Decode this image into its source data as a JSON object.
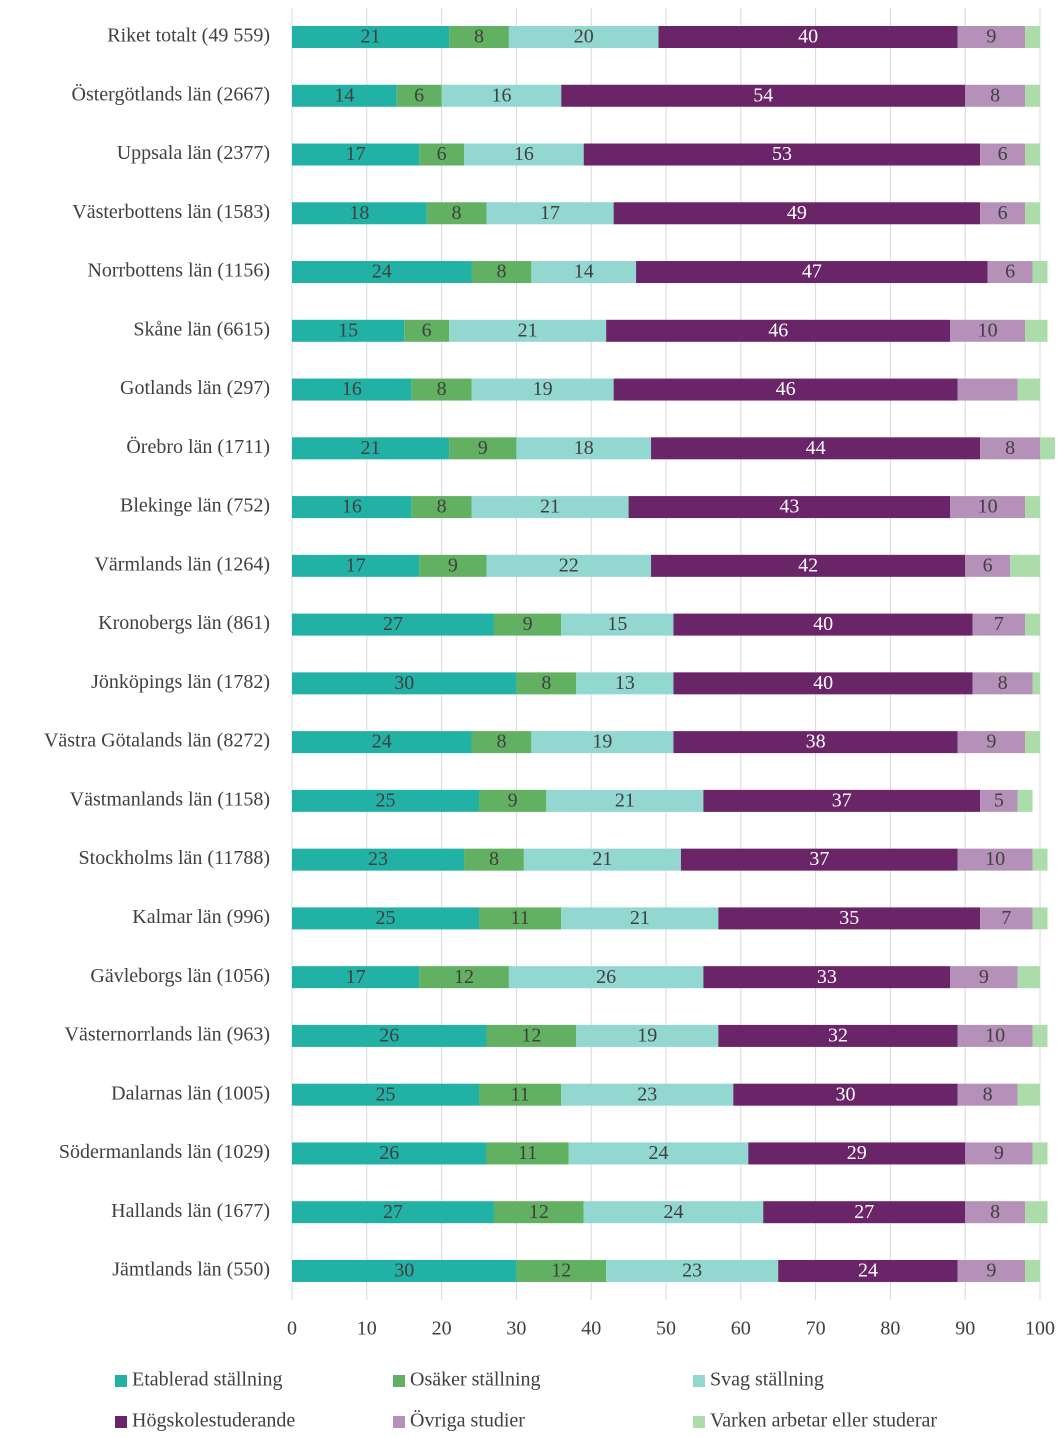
{
  "chart_data": {
    "type": "stacked_bar_horizontal",
    "categories": [
      "Riket totalt (49 559)",
      "Östergötlands län (2667)",
      "Uppsala län (2377)",
      "Västerbottens län (1583)",
      "Norrbottens län (1156)",
      "Skåne län (6615)",
      "Gotlands län (297)",
      "Örebro län (1711)",
      "Blekinge län (752)",
      "Värmlands län (1264)",
      "Kronobergs län (861)",
      "Jönköpings län (1782)",
      "Västra Götalands län (8272)",
      "Västmanlands län (1158)",
      "Stockholms län (11788)",
      "Kalmar län (996)",
      "Gävleborgs län (1056)",
      "Västernorrlands län (963)",
      "Dalarnas län (1005)",
      "Södermanlands län (1029)",
      "Hallands län (1677)",
      "Jämtlands län (550)"
    ],
    "series": [
      {
        "name": "Etablerad ställning",
        "color": "#22b1a5",
        "label_color": "#404040",
        "values": [
          21,
          14,
          17,
          18,
          24,
          15,
          16,
          21,
          16,
          17,
          27,
          30,
          24,
          25,
          23,
          25,
          17,
          26,
          25,
          26,
          27,
          30
        ]
      },
      {
        "name": "Osäker ställning",
        "color": "#62b162",
        "label_color": "#404040",
        "values": [
          8,
          6,
          6,
          8,
          8,
          6,
          8,
          9,
          8,
          9,
          9,
          8,
          8,
          9,
          8,
          11,
          12,
          12,
          11,
          11,
          12,
          12
        ]
      },
      {
        "name": "Svag ställning",
        "color": "#93d7d1",
        "label_color": "#404040",
        "values": [
          20,
          16,
          16,
          17,
          14,
          21,
          19,
          18,
          21,
          22,
          15,
          13,
          19,
          21,
          21,
          21,
          26,
          19,
          23,
          24,
          24,
          23
        ]
      },
      {
        "name": "Högskolestuderande",
        "color": "#6a2468",
        "label_color": "#ffffff",
        "values": [
          40,
          54,
          53,
          49,
          47,
          46,
          46,
          44,
          43,
          42,
          40,
          40,
          38,
          37,
          37,
          35,
          33,
          32,
          30,
          29,
          27,
          24
        ]
      },
      {
        "name": "Övriga studier",
        "color": "#b591b9",
        "label_color": "#404040",
        "values": [
          9,
          8,
          6,
          6,
          6,
          10,
          8,
          8,
          10,
          6,
          7,
          8,
          9,
          5,
          10,
          7,
          9,
          10,
          8,
          9,
          8,
          9
        ],
        "value_labels": [
          "9",
          "8",
          "6",
          "6",
          "6",
          "10",
          null,
          "8",
          "10",
          "6",
          "7",
          "8",
          "9",
          "5",
          "10",
          "7",
          "9",
          "10",
          "8",
          "9",
          "8",
          "9"
        ]
      },
      {
        "name": "Varken arbetar eller studerar",
        "color": "#acdca9",
        "label_color": "#404040",
        "values": [
          2,
          2,
          2,
          2,
          2,
          3,
          3,
          2,
          2,
          4,
          2,
          1,
          2,
          2,
          2,
          2,
          3,
          2,
          3,
          2,
          3,
          2
        ],
        "value_labels": [
          null,
          null,
          null,
          null,
          null,
          null,
          null,
          null,
          null,
          null,
          null,
          null,
          null,
          null,
          null,
          null,
          null,
          null,
          null,
          null,
          null,
          null
        ]
      }
    ],
    "xlim": [
      0,
      100
    ],
    "xticks": [
      0,
      10,
      20,
      30,
      40,
      50,
      60,
      70,
      80,
      90,
      100
    ],
    "grid": true,
    "legend": "bottom"
  }
}
